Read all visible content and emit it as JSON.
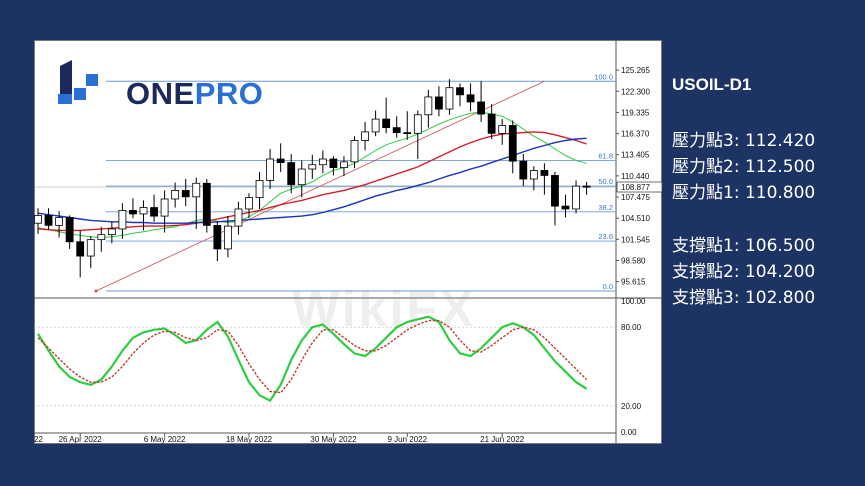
{
  "symbol_title": "USOIL-D1",
  "brand": {
    "name_part1": "ONE",
    "name_part2": "PRO",
    "logo_blue": "#2a6fd6",
    "logo_navy": "#1b2a5c"
  },
  "watermark": "WikiFX",
  "resistance": [
    {
      "label": "壓力點3:",
      "value": "112.420"
    },
    {
      "label": "壓力點2:",
      "value": "112.500"
    },
    {
      "label": "壓力點1:",
      "value": "110.800"
    }
  ],
  "support": [
    {
      "label": "支撐點1:",
      "value": "106.500"
    },
    {
      "label": "支撐點2:",
      "value": "104.200"
    },
    {
      "label": "支撐點3:",
      "value": "102.800"
    }
  ],
  "chart_data": [
    {
      "type": "candlestick",
      "price_ticks": [
        "125.265",
        "122.300",
        "119.335",
        "116.370",
        "113.405",
        "110.440",
        "107.475",
        "104.510",
        "101.545",
        "98.580",
        "95.615"
      ],
      "current_price": "108.877",
      "ylim": [
        93.6,
        126.4
      ],
      "date_ticks": [
        {
          "label": "22",
          "index": -1.3
        },
        {
          "label": "26 Apr 2022",
          "index": 4
        },
        {
          "label": "6 May 2022",
          "index": 12
        },
        {
          "label": "18 May 2022",
          "index": 20
        },
        {
          "label": "30 May 2022",
          "index": 28
        },
        {
          "label": "9 Jun 2022",
          "index": 35
        },
        {
          "label": "21 Jun 2022",
          "index": 44
        }
      ],
      "fibonacci": [
        {
          "label": "100.0",
          "price": 123.7
        },
        {
          "label": "61.8",
          "price": 112.6
        },
        {
          "label": "50.0",
          "price": 109.0
        },
        {
          "label": "38.2",
          "price": 105.4
        },
        {
          "label": "23.6",
          "price": 101.3
        },
        {
          "label": "0.0",
          "price": 94.3
        }
      ],
      "trendline": {
        "from": {
          "index": 5.5,
          "price": 94.3
        },
        "to": {
          "index": 48,
          "price": 123.7
        }
      },
      "candles": [
        {
          "o": 103.8,
          "h": 105.9,
          "l": 102.3,
          "c": 104.9
        },
        {
          "o": 104.9,
          "h": 105.9,
          "l": 102.9,
          "c": 103.5
        },
        {
          "o": 103.5,
          "h": 105.5,
          "l": 101.8,
          "c": 104.6
        },
        {
          "o": 104.6,
          "h": 104.9,
          "l": 100.2,
          "c": 101.2
        },
        {
          "o": 101.2,
          "h": 102.8,
          "l": 96.2,
          "c": 99.2
        },
        {
          "o": 99.2,
          "h": 102.0,
          "l": 97.5,
          "c": 101.5
        },
        {
          "o": 101.5,
          "h": 103.3,
          "l": 99.8,
          "c": 102.2
        },
        {
          "o": 102.2,
          "h": 104.0,
          "l": 101.0,
          "c": 103.0
        },
        {
          "o": 103.0,
          "h": 106.6,
          "l": 101.6,
          "c": 105.6
        },
        {
          "o": 105.6,
          "h": 107.3,
          "l": 104.5,
          "c": 105.1
        },
        {
          "o": 105.1,
          "h": 107.0,
          "l": 102.8,
          "c": 106.0
        },
        {
          "o": 106.0,
          "h": 107.8,
          "l": 104.0,
          "c": 104.8
        },
        {
          "o": 104.8,
          "h": 108.4,
          "l": 102.5,
          "c": 107.2
        },
        {
          "o": 107.2,
          "h": 109.5,
          "l": 106.0,
          "c": 108.4
        },
        {
          "o": 108.4,
          "h": 110.0,
          "l": 106.2,
          "c": 107.5
        },
        {
          "o": 107.5,
          "h": 110.2,
          "l": 103.0,
          "c": 109.4
        },
        {
          "o": 109.4,
          "h": 110.0,
          "l": 102.5,
          "c": 103.5
        },
        {
          "o": 103.5,
          "h": 104.0,
          "l": 98.5,
          "c": 100.2
        },
        {
          "o": 100.2,
          "h": 104.8,
          "l": 99.0,
          "c": 103.4
        },
        {
          "o": 103.4,
          "h": 106.8,
          "l": 102.2,
          "c": 105.8
        },
        {
          "o": 105.8,
          "h": 108.0,
          "l": 104.5,
          "c": 107.4
        },
        {
          "o": 107.4,
          "h": 111.0,
          "l": 105.8,
          "c": 109.8
        },
        {
          "o": 109.8,
          "h": 114.2,
          "l": 108.6,
          "c": 112.8
        },
        {
          "o": 112.8,
          "h": 115.0,
          "l": 111.0,
          "c": 112.3
        },
        {
          "o": 112.3,
          "h": 113.5,
          "l": 108.0,
          "c": 109.2
        },
        {
          "o": 109.2,
          "h": 112.6,
          "l": 107.4,
          "c": 111.4
        },
        {
          "o": 111.4,
          "h": 113.4,
          "l": 110.0,
          "c": 112.0
        },
        {
          "o": 112.0,
          "h": 114.0,
          "l": 110.8,
          "c": 112.8
        },
        {
          "o": 112.8,
          "h": 113.2,
          "l": 110.5,
          "c": 111.6
        },
        {
          "o": 111.6,
          "h": 113.2,
          "l": 110.4,
          "c": 112.4
        },
        {
          "o": 112.4,
          "h": 116.0,
          "l": 111.5,
          "c": 115.4
        },
        {
          "o": 115.4,
          "h": 118.0,
          "l": 114.0,
          "c": 116.6
        },
        {
          "o": 116.6,
          "h": 119.6,
          "l": 116.0,
          "c": 118.4
        },
        {
          "o": 118.4,
          "h": 121.4,
          "l": 116.4,
          "c": 117.2
        },
        {
          "o": 117.2,
          "h": 118.8,
          "l": 115.8,
          "c": 116.5
        },
        {
          "o": 116.5,
          "h": 119.5,
          "l": 115.5,
          "c": 116.4
        },
        {
          "o": 116.4,
          "h": 119.6,
          "l": 112.8,
          "c": 119.0
        },
        {
          "o": 119.0,
          "h": 122.5,
          "l": 117.2,
          "c": 121.5
        },
        {
          "o": 121.5,
          "h": 123.0,
          "l": 118.8,
          "c": 119.8
        },
        {
          "o": 119.8,
          "h": 124.0,
          "l": 119.0,
          "c": 122.8
        },
        {
          "o": 122.8,
          "h": 123.4,
          "l": 120.2,
          "c": 121.8
        },
        {
          "o": 121.8,
          "h": 123.4,
          "l": 119.5,
          "c": 120.8
        },
        {
          "o": 120.8,
          "h": 123.7,
          "l": 118.0,
          "c": 119.1
        },
        {
          "o": 119.1,
          "h": 120.5,
          "l": 115.6,
          "c": 116.4
        },
        {
          "o": 116.4,
          "h": 118.4,
          "l": 114.8,
          "c": 117.5
        },
        {
          "o": 117.5,
          "h": 118.2,
          "l": 110.8,
          "c": 112.5
        },
        {
          "o": 112.5,
          "h": 113.5,
          "l": 109.0,
          "c": 110.0
        },
        {
          "o": 110.0,
          "h": 111.8,
          "l": 108.4,
          "c": 111.2
        },
        {
          "o": 111.2,
          "h": 112.2,
          "l": 107.8,
          "c": 110.5
        },
        {
          "o": 110.5,
          "h": 111.0,
          "l": 103.5,
          "c": 106.2
        },
        {
          "o": 106.2,
          "h": 107.8,
          "l": 104.6,
          "c": 105.8
        },
        {
          "o": 105.8,
          "h": 109.8,
          "l": 105.2,
          "c": 109.0
        },
        {
          "o": 109.0,
          "h": 109.6,
          "l": 107.8,
          "c": 108.9
        }
      ],
      "moving_averages": [
        {
          "color": "#2ecc40",
          "values": [
            103.2,
            102.9,
            102.6,
            102.3,
            102.1,
            101.9,
            101.8,
            101.9,
            102.1,
            102.4,
            102.6,
            102.9,
            103.1,
            103.3,
            103.7,
            104.2,
            104.4,
            104.1,
            103.9,
            104.1,
            104.7,
            105.6,
            106.8,
            108.0,
            108.6,
            109.0,
            109.6,
            110.5,
            111.2,
            111.6,
            112.2,
            113.1,
            114.0,
            114.8,
            115.3,
            115.7,
            116.3,
            117.0,
            117.7,
            118.3,
            118.8,
            119.2,
            119.4,
            119.1,
            118.8,
            118.0,
            117.0,
            116.0,
            115.2,
            114.2,
            113.3,
            112.6,
            112.2
          ]
        },
        {
          "color": "#d11f2a",
          "values": [
            103.0,
            102.9,
            102.8,
            102.8,
            102.8,
            102.9,
            103.0,
            103.1,
            103.2,
            103.3,
            103.4,
            103.4,
            103.4,
            103.5,
            103.6,
            103.8,
            104.1,
            104.4,
            104.7,
            105.0,
            105.3,
            105.6,
            106.0,
            106.4,
            106.7,
            107.0,
            107.4,
            107.8,
            108.1,
            108.4,
            108.8,
            109.2,
            109.7,
            110.2,
            110.7,
            111.2,
            111.7,
            112.4,
            113.1,
            113.8,
            114.5,
            115.1,
            115.6,
            116.0,
            116.3,
            116.4,
            116.5,
            116.6,
            116.5,
            116.2,
            115.8,
            115.4,
            114.9
          ]
        },
        {
          "color": "#1a33b8",
          "values": [
            105.2,
            105.0,
            104.8,
            104.6,
            104.4,
            104.2,
            104.1,
            104.0,
            104.0,
            103.9,
            103.9,
            103.8,
            103.8,
            103.8,
            103.8,
            103.9,
            103.9,
            104.0,
            104.1,
            104.2,
            104.3,
            104.4,
            104.5,
            104.6,
            104.7,
            104.8,
            105.0,
            105.3,
            105.7,
            106.1,
            106.6,
            107.1,
            107.6,
            108.0,
            108.4,
            108.7,
            109.1,
            109.5,
            110.0,
            110.5,
            110.9,
            111.4,
            111.8,
            112.3,
            112.8,
            113.3,
            113.8,
            114.3,
            114.7,
            115.1,
            115.4,
            115.6,
            115.7
          ]
        }
      ]
    },
    {
      "type": "line",
      "indicator_ticks": [
        "100.00",
        "80.00",
        "20.00",
        "0.00"
      ],
      "ylim": [
        0,
        100
      ],
      "series": [
        {
          "color": "#2ecc40",
          "values": [
            75,
            62,
            50,
            42,
            38,
            36,
            40,
            50,
            62,
            72,
            76,
            78,
            79,
            74,
            68,
            70,
            78,
            84,
            73,
            55,
            38,
            28,
            24,
            36,
            55,
            70,
            80,
            82,
            75,
            67,
            60,
            58,
            64,
            72,
            80,
            84,
            86,
            88,
            84,
            70,
            60,
            58,
            64,
            72,
            80,
            83,
            80,
            74,
            64,
            54,
            46,
            38,
            33
          ]
        },
        {
          "color": "#c0392b",
          "values": [
            72,
            64,
            56,
            48,
            42,
            38,
            38,
            42,
            50,
            60,
            68,
            74,
            77,
            76,
            72,
            70,
            72,
            78,
            77,
            66,
            52,
            40,
            31,
            30,
            40,
            55,
            68,
            78,
            78,
            72,
            66,
            62,
            62,
            66,
            72,
            78,
            82,
            85,
            85,
            80,
            70,
            62,
            61,
            66,
            72,
            78,
            80,
            78,
            72,
            64,
            56,
            48,
            40
          ]
        }
      ]
    }
  ]
}
